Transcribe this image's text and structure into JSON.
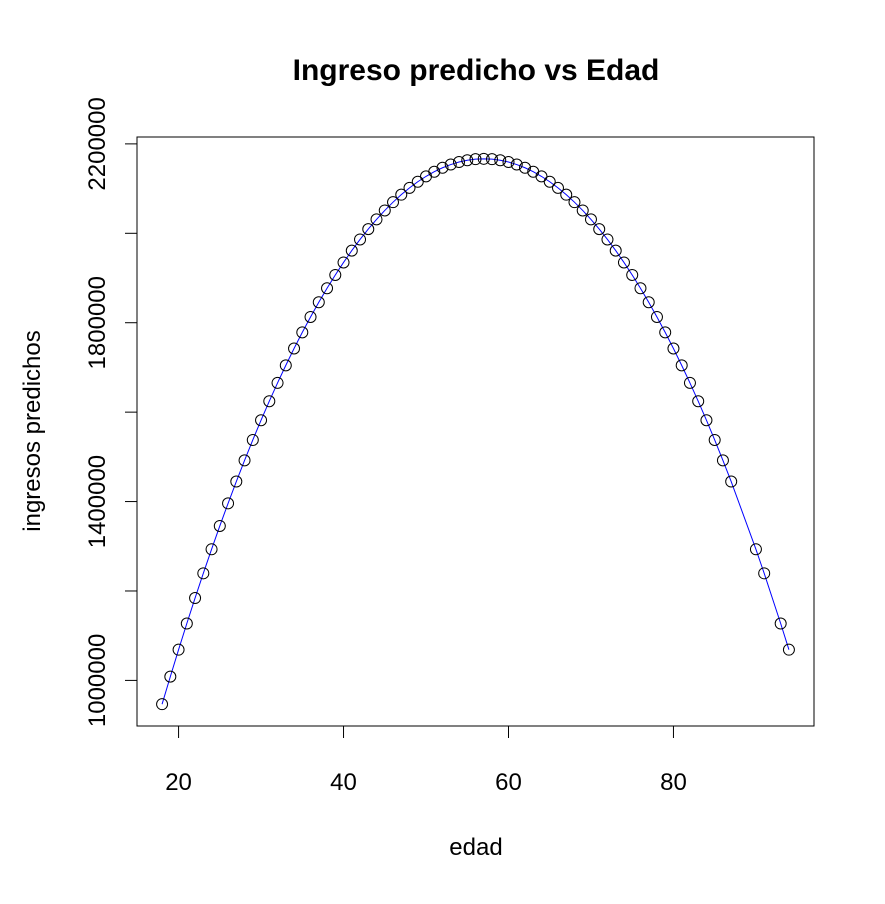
{
  "chart_data": {
    "type": "line",
    "title": "Ingreso predicho vs Edad",
    "x_label": "edad",
    "y_label": "ingresos predichos",
    "x": [
      18,
      19,
      20,
      21,
      22,
      23,
      24,
      25,
      26,
      27,
      28,
      29,
      30,
      31,
      32,
      33,
      34,
      35,
      36,
      37,
      38,
      39,
      40,
      41,
      42,
      43,
      44,
      45,
      46,
      47,
      48,
      49,
      50,
      51,
      52,
      53,
      54,
      55,
      56,
      57,
      58,
      59,
      60,
      61,
      62,
      63,
      64,
      65,
      66,
      67,
      68,
      69,
      70,
      71,
      72,
      73,
      74,
      75,
      76,
      77,
      78,
      79,
      80,
      81,
      82,
      83,
      84,
      85,
      86,
      87,
      90,
      91,
      93,
      94
    ],
    "series": [
      {
        "color": "#0000ff",
        "marker_color": "#000000",
        "values": [
          946800,
          1008500,
          1068700,
          1127200,
          1184200,
          1239500,
          1293200,
          1345400,
          1395900,
          1444800,
          1492100,
          1537800,
          1581900,
          1624400,
          1665400,
          1704600,
          1742300,
          1778400,
          1812900,
          1845800,
          1877100,
          1906800,
          1934800,
          1961300,
          1986200,
          2009400,
          2031100,
          2051100,
          2069600,
          2086400,
          2101600,
          2115300,
          2127300,
          2137700,
          2146600,
          2153800,
          2159400,
          2163400,
          2165800,
          2166600,
          2165800,
          2163400,
          2159400,
          2153800,
          2146600,
          2137700,
          2127300,
          2115300,
          2101600,
          2086400,
          2069600,
          2051100,
          2031100,
          2009400,
          1986200,
          1961300,
          1934800,
          1906800,
          1877100,
          1845800,
          1812900,
          1778400,
          1742300,
          1704600,
          1665400,
          1624400,
          1581900,
          1537800,
          1492100,
          1444800,
          1293200,
          1239500,
          1127200,
          1068700
        ]
      }
    ],
    "xlim": [
      14.96,
      97.04
    ],
    "ylim": [
      898008,
      2215392
    ],
    "xticks": [
      20,
      40,
      60,
      80
    ],
    "yticks": [
      1000000,
      {
        "value": 1200000,
        "label": null
      },
      1400000,
      {
        "value": 1600000,
        "label": null
      },
      1800000,
      {
        "value": 2000000,
        "label": null
      },
      2200000
    ]
  }
}
